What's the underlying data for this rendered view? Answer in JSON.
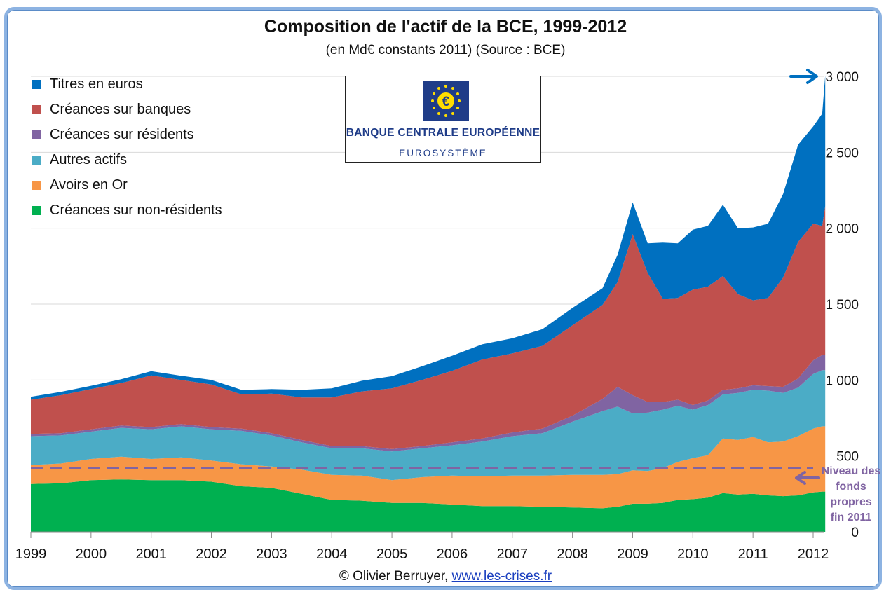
{
  "chart_data": {
    "type": "area",
    "stacked": true,
    "title": "Composition de l'actif de la BCE, 1999-2012",
    "subtitle": "(en Md€ constants 2011) (Source : BCE)",
    "ylim": [
      0,
      3000
    ],
    "xlim": [
      1999,
      2012.25
    ],
    "y_ticks": [
      0,
      500,
      1000,
      1500,
      2000,
      2500,
      3000
    ],
    "y_tick_labels": [
      "0",
      "500",
      "1 000",
      "1 500",
      "2 000",
      "2 500",
      "3 000"
    ],
    "x_ticks": [
      1999,
      2000,
      2001,
      2002,
      2003,
      2004,
      2005,
      2006,
      2007,
      2008,
      2009,
      2010,
      2011,
      2012
    ],
    "x_tick_labels": [
      "1999",
      "2000",
      "2001",
      "2002",
      "2003",
      "2004",
      "2005",
      "2006",
      "2007",
      "2008",
      "2009",
      "2010",
      "2011",
      "2012"
    ],
    "legend_position": "top-left",
    "x": [
      1999.0,
      1999.5,
      2000.0,
      2000.5,
      2001.0,
      2001.5,
      2002.0,
      2002.5,
      2003.0,
      2003.5,
      2004.0,
      2004.5,
      2005.0,
      2005.5,
      2006.0,
      2006.5,
      2007.0,
      2007.5,
      2008.0,
      2008.5,
      2008.75,
      2009.0,
      2009.25,
      2009.5,
      2009.75,
      2010.0,
      2010.25,
      2010.5,
      2010.75,
      2011.0,
      2011.25,
      2011.5,
      2011.75,
      2012.0,
      2012.15,
      2012.2
    ],
    "series": [
      {
        "name": "Créances sur non-résidents",
        "color": "#00b050",
        "values": [
          315,
          320,
          340,
          345,
          340,
          340,
          330,
          300,
          290,
          250,
          210,
          205,
          190,
          190,
          180,
          170,
          170,
          165,
          160,
          155,
          165,
          185,
          185,
          190,
          210,
          215,
          225,
          255,
          245,
          250,
          240,
          235,
          240,
          260,
          265,
          265
        ]
      },
      {
        "name": "Avoirs en Or",
        "color": "#f79646",
        "values": [
          125,
          130,
          140,
          150,
          140,
          150,
          140,
          145,
          140,
          160,
          165,
          165,
          150,
          170,
          190,
          195,
          200,
          205,
          215,
          220,
          215,
          220,
          215,
          230,
          250,
          270,
          280,
          360,
          360,
          375,
          350,
          360,
          390,
          420,
          430,
          430
        ]
      },
      {
        "name": "Autres actifs",
        "color": "#4bacc6",
        "values": [
          190,
          185,
          180,
          190,
          195,
          205,
          205,
          220,
          205,
          180,
          175,
          180,
          190,
          190,
          200,
          230,
          260,
          280,
          350,
          420,
          445,
          375,
          385,
          385,
          370,
          320,
          330,
          290,
          310,
          310,
          340,
          320,
          320,
          360,
          370,
          370
        ]
      },
      {
        "name": "Créances sur résidents",
        "color": "#8064a2",
        "values": [
          15,
          15,
          15,
          15,
          15,
          15,
          15,
          15,
          15,
          15,
          15,
          15,
          15,
          15,
          20,
          20,
          25,
          30,
          40,
          80,
          130,
          120,
          70,
          50,
          40,
          30,
          30,
          30,
          30,
          30,
          30,
          40,
          60,
          90,
          100,
          100
        ]
      },
      {
        "name": "Créances sur banques",
        "color": "#c0504d",
        "values": [
          225,
          250,
          265,
          280,
          340,
          290,
          280,
          225,
          260,
          280,
          320,
          360,
          400,
          435,
          470,
          520,
          520,
          545,
          595,
          620,
          690,
          1060,
          850,
          680,
          670,
          760,
          750,
          750,
          620,
          560,
          580,
          720,
          900,
          900,
          850,
          980
        ]
      },
      {
        "name": "Titres en euros",
        "color": "#0070c0",
        "values": [
          20,
          22,
          22,
          25,
          28,
          28,
          30,
          30,
          30,
          50,
          60,
          70,
          80,
          90,
          100,
          100,
          100,
          110,
          115,
          110,
          180,
          210,
          195,
          370,
          360,
          395,
          400,
          470,
          435,
          480,
          490,
          550,
          640,
          640,
          740,
          860
        ]
      }
    ],
    "reference_line": {
      "label": "Niveau des fonds propres fin 2011",
      "value": 420,
      "color": "#8064a2"
    },
    "annotations": [
      "Niveau des fonds propres fin 2011"
    ]
  },
  "logo": {
    "name": "BANQUE CENTRALE EUROPÉENNE",
    "subtitle": "EUROSYSTÈME"
  },
  "credit": {
    "text": "© Olivier Berruyer,",
    "link": "www.les-crises.fr"
  },
  "annotation_lines": [
    "Niveau des",
    "fonds",
    "propres",
    "fin 2011"
  ]
}
